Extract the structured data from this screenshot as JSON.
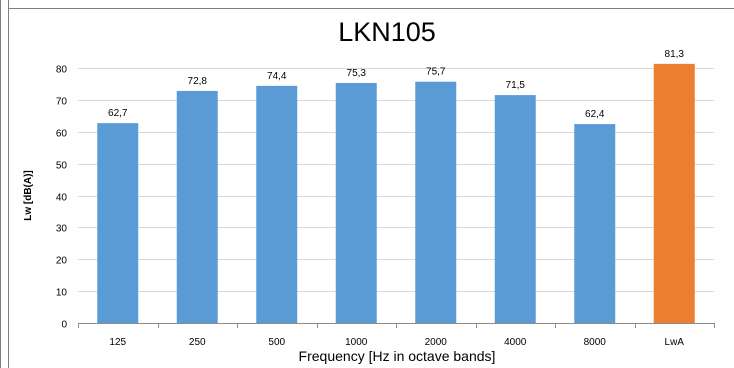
{
  "chart_data": {
    "type": "bar",
    "title": "LKN105",
    "xlabel": "Frequency [Hz in octave bands]",
    "ylabel": "Lw [dB(A)]",
    "categories": [
      "125",
      "250",
      "500",
      "1000",
      "2000",
      "4000",
      "8000",
      "LwA"
    ],
    "values": [
      62.7,
      72.8,
      74.4,
      75.3,
      75.7,
      71.5,
      62.4,
      81.3
    ],
    "value_labels": [
      "62,7",
      "72,8",
      "74,4",
      "75,3",
      "75,7",
      "71,5",
      "62,4",
      "81,3"
    ],
    "bar_colors": [
      "#5b9bd5",
      "#5b9bd5",
      "#5b9bd5",
      "#5b9bd5",
      "#5b9bd5",
      "#5b9bd5",
      "#5b9bd5",
      "#ed7d31"
    ],
    "ylim": [
      0,
      85
    ],
    "yticks": [
      0,
      10,
      20,
      30,
      40,
      50,
      60,
      70,
      80
    ],
    "grid": true,
    "legend": "none"
  }
}
